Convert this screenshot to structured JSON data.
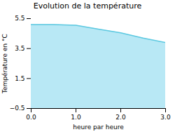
{
  "chart_data": {
    "type": "area",
    "title": "Evolution de la température",
    "x": [
      0,
      0.5,
      1.0,
      1.5,
      2.0,
      2.5,
      3.0
    ],
    "values": [
      5.1,
      5.1,
      5.05,
      4.8,
      4.55,
      4.2,
      3.9
    ],
    "xlabel": "heure par heure",
    "ylabel": "Température en °C",
    "xlim": [
      0,
      3
    ],
    "ylim": [
      -0.5,
      5.5
    ],
    "xticks": [
      0,
      1,
      2,
      3
    ],
    "yticks": [
      -0.5,
      1.5,
      3.5,
      5.5
    ],
    "colors": [
      "#5bc8e0",
      "#b8e8f5"
    ],
    "grid": false
  }
}
